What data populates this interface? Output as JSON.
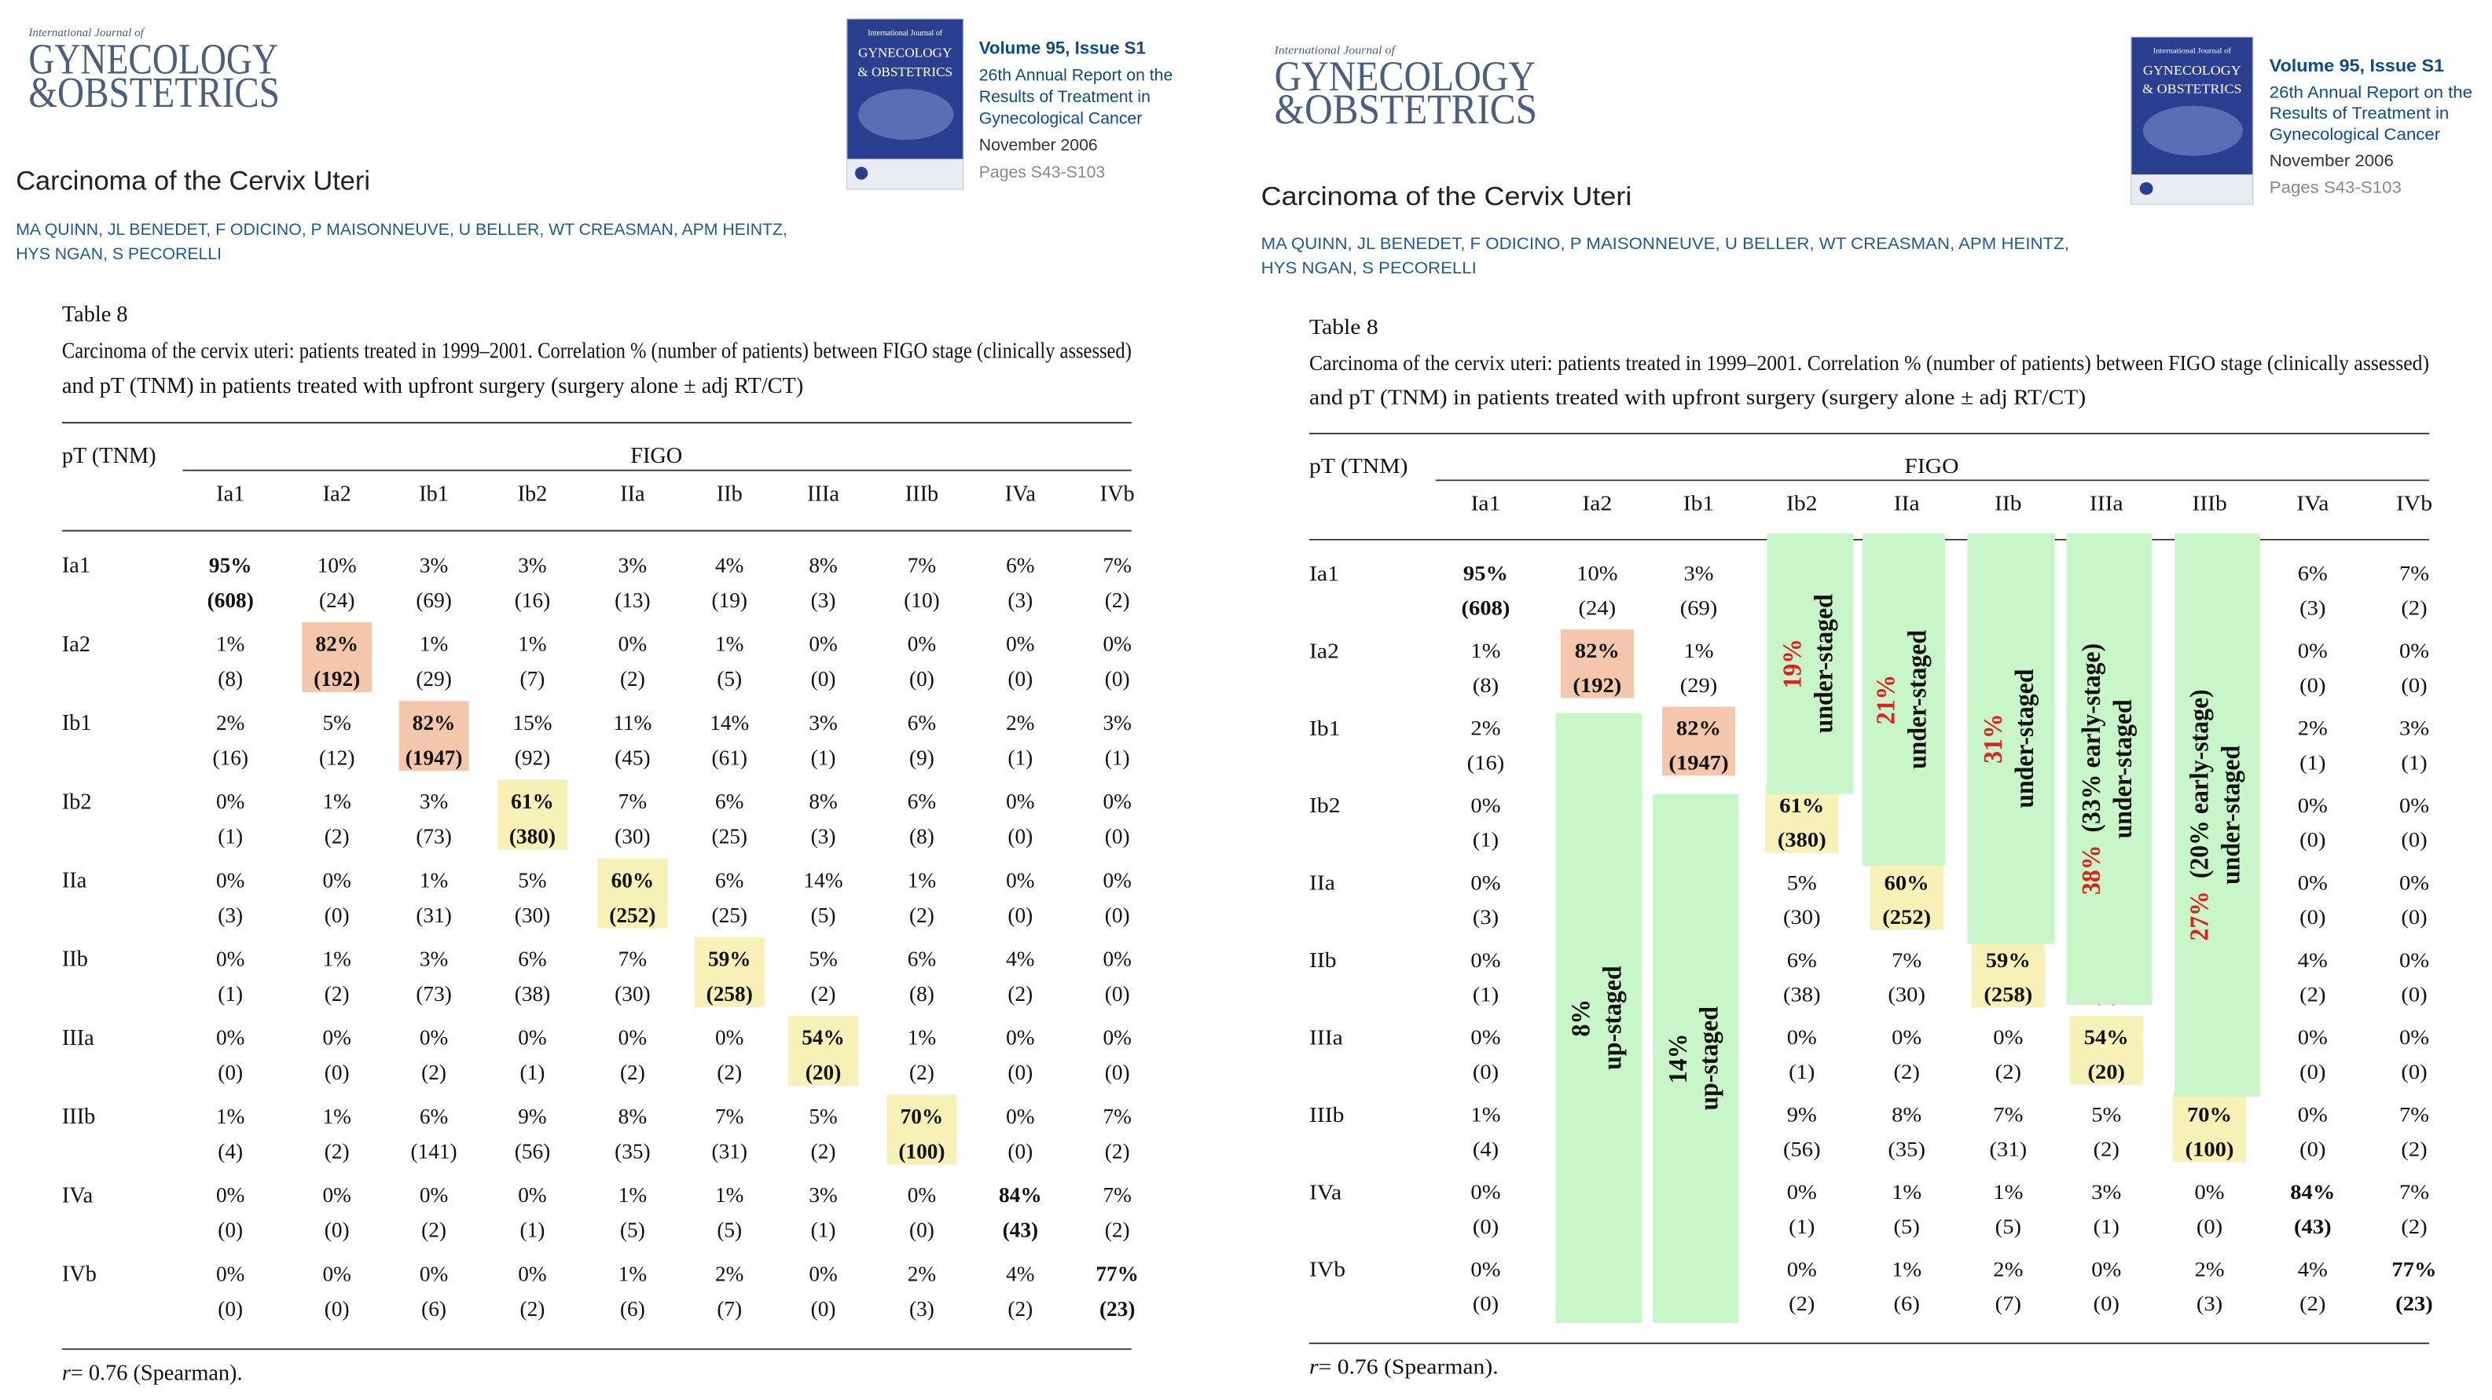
{
  "journal": {
    "kicker": "International Journal of",
    "name_line1": "GYNECOLOGY",
    "name_line2": "&OBSTETRICS"
  },
  "cover": {
    "lines": [
      "International Journal of",
      "GYNECOLOGY",
      "& OBSTETRICS"
    ]
  },
  "issue": {
    "volume": "Volume 95, Issue S1",
    "report": [
      "26th Annual Report on the",
      "Results of Treatment in",
      "Gynecological Cancer"
    ],
    "date": "November 2006",
    "pages": "Pages S43-S103"
  },
  "article": {
    "title": "Carcinoma of the Cervix Uteri",
    "authors": [
      "MA QUINN, JL BENEDET, F ODICINO, P MAISONNEUVE, U BELLER, WT CREASMAN, APM HEINTZ,",
      "HYS NGAN, S PECORELLI"
    ]
  },
  "table": {
    "label": "Table 8",
    "caption": [
      "Carcinoma of the cervix uteri: patients treated in 1999–2001. Correlation % (number of patients) between FIGO stage (clinically assessed)",
      "and pT (TNM) in patients treated with upfront surgery (surgery alone ± adj RT/CT)"
    ],
    "row_header": "pT (TNM)",
    "column_group": "FIGO",
    "columns": [
      "Ia1",
      "Ia2",
      "Ib1",
      "Ib2",
      "IIa",
      "IIb",
      "IIIa",
      "IIIb",
      "IVa",
      "IVb"
    ],
    "rows": [
      {
        "label": "Ia1",
        "cells": [
          {
            "pct": "95%",
            "n": "(608)",
            "bold": true
          },
          {
            "pct": "10%",
            "n": "(24)"
          },
          {
            "pct": "3%",
            "n": "(69)"
          },
          {
            "pct": "3%",
            "n": "(16)"
          },
          {
            "pct": "3%",
            "n": "(13)"
          },
          {
            "pct": "4%",
            "n": "(19)"
          },
          {
            "pct": "8%",
            "n": "(3)"
          },
          {
            "pct": "7%",
            "n": "(10)"
          },
          {
            "pct": "6%",
            "n": "(3)"
          },
          {
            "pct": "7%",
            "n": "(2)"
          }
        ]
      },
      {
        "label": "Ia2",
        "cells": [
          {
            "pct": "1%",
            "n": "(8)"
          },
          {
            "pct": "82%",
            "n": "(192)",
            "bold": true,
            "highlight": "salmon"
          },
          {
            "pct": "1%",
            "n": "(29)"
          },
          {
            "pct": "1%",
            "n": "(7)"
          },
          {
            "pct": "0%",
            "n": "(2)"
          },
          {
            "pct": "1%",
            "n": "(5)"
          },
          {
            "pct": "0%",
            "n": "(0)"
          },
          {
            "pct": "0%",
            "n": "(0)"
          },
          {
            "pct": "0%",
            "n": "(0)"
          },
          {
            "pct": "0%",
            "n": "(0)"
          }
        ]
      },
      {
        "label": "Ib1",
        "cells": [
          {
            "pct": "2%",
            "n": "(16)"
          },
          {
            "pct": "5%",
            "n": "(12)"
          },
          {
            "pct": "82%",
            "n": "(1947)",
            "bold": true,
            "highlight": "salmon"
          },
          {
            "pct": "15%",
            "n": "(92)"
          },
          {
            "pct": "11%",
            "n": "(45)"
          },
          {
            "pct": "14%",
            "n": "(61)"
          },
          {
            "pct": "3%",
            "n": "(1)"
          },
          {
            "pct": "6%",
            "n": "(9)"
          },
          {
            "pct": "2%",
            "n": "(1)"
          },
          {
            "pct": "3%",
            "n": "(1)"
          }
        ]
      },
      {
        "label": "Ib2",
        "cells": [
          {
            "pct": "0%",
            "n": "(1)"
          },
          {
            "pct": "1%",
            "n": "(2)"
          },
          {
            "pct": "3%",
            "n": "(73)"
          },
          {
            "pct": "61%",
            "n": "(380)",
            "bold": true,
            "highlight": "yellow"
          },
          {
            "pct": "7%",
            "n": "(30)"
          },
          {
            "pct": "6%",
            "n": "(25)"
          },
          {
            "pct": "8%",
            "n": "(3)"
          },
          {
            "pct": "6%",
            "n": "(8)"
          },
          {
            "pct": "0%",
            "n": "(0)"
          },
          {
            "pct": "0%",
            "n": "(0)"
          }
        ]
      },
      {
        "label": "IIa",
        "cells": [
          {
            "pct": "0%",
            "n": "(3)"
          },
          {
            "pct": "0%",
            "n": "(0)"
          },
          {
            "pct": "1%",
            "n": "(31)"
          },
          {
            "pct": "5%",
            "n": "(30)"
          },
          {
            "pct": "60%",
            "n": "(252)",
            "bold": true,
            "highlight": "yellow"
          },
          {
            "pct": "6%",
            "n": "(25)"
          },
          {
            "pct": "14%",
            "n": "(5)"
          },
          {
            "pct": "1%",
            "n": "(2)"
          },
          {
            "pct": "0%",
            "n": "(0)"
          },
          {
            "pct": "0%",
            "n": "(0)"
          }
        ]
      },
      {
        "label": "IIb",
        "cells": [
          {
            "pct": "0%",
            "n": "(1)"
          },
          {
            "pct": "1%",
            "n": "(2)"
          },
          {
            "pct": "3%",
            "n": "(73)"
          },
          {
            "pct": "6%",
            "n": "(38)"
          },
          {
            "pct": "7%",
            "n": "(30)"
          },
          {
            "pct": "59%",
            "n": "(258)",
            "bold": true,
            "highlight": "yellow"
          },
          {
            "pct": "5%",
            "n": "(2)"
          },
          {
            "pct": "6%",
            "n": "(8)"
          },
          {
            "pct": "4%",
            "n": "(2)"
          },
          {
            "pct": "0%",
            "n": "(0)"
          }
        ]
      },
      {
        "label": "IIIa",
        "cells": [
          {
            "pct": "0%",
            "n": "(0)"
          },
          {
            "pct": "0%",
            "n": "(0)"
          },
          {
            "pct": "0%",
            "n": "(2)"
          },
          {
            "pct": "0%",
            "n": "(1)"
          },
          {
            "pct": "0%",
            "n": "(2)"
          },
          {
            "pct": "0%",
            "n": "(2)"
          },
          {
            "pct": "54%",
            "n": "(20)",
            "bold": true,
            "highlight": "yellow"
          },
          {
            "pct": "1%",
            "n": "(2)"
          },
          {
            "pct": "0%",
            "n": "(0)"
          },
          {
            "pct": "0%",
            "n": "(0)"
          }
        ]
      },
      {
        "label": "IIIb",
        "cells": [
          {
            "pct": "1%",
            "n": "(4)"
          },
          {
            "pct": "1%",
            "n": "(2)"
          },
          {
            "pct": "6%",
            "n": "(141)"
          },
          {
            "pct": "9%",
            "n": "(56)"
          },
          {
            "pct": "8%",
            "n": "(35)"
          },
          {
            "pct": "7%",
            "n": "(31)"
          },
          {
            "pct": "5%",
            "n": "(2)"
          },
          {
            "pct": "70%",
            "n": "(100)",
            "bold": true,
            "highlight": "yellow"
          },
          {
            "pct": "0%",
            "n": "(0)"
          },
          {
            "pct": "7%",
            "n": "(2)"
          }
        ]
      },
      {
        "label": "IVa",
        "cells": [
          {
            "pct": "0%",
            "n": "(0)"
          },
          {
            "pct": "0%",
            "n": "(0)"
          },
          {
            "pct": "0%",
            "n": "(2)"
          },
          {
            "pct": "0%",
            "n": "(1)"
          },
          {
            "pct": "1%",
            "n": "(5)"
          },
          {
            "pct": "1%",
            "n": "(5)"
          },
          {
            "pct": "3%",
            "n": "(1)"
          },
          {
            "pct": "0%",
            "n": "(0)"
          },
          {
            "pct": "84%",
            "n": "(43)",
            "bold": true
          },
          {
            "pct": "7%",
            "n": "(2)"
          }
        ]
      },
      {
        "label": "IVb",
        "cells": [
          {
            "pct": "0%",
            "n": "(0)"
          },
          {
            "pct": "0%",
            "n": "(0)"
          },
          {
            "pct": "0%",
            "n": "(6)"
          },
          {
            "pct": "0%",
            "n": "(2)"
          },
          {
            "pct": "1%",
            "n": "(6)"
          },
          {
            "pct": "2%",
            "n": "(7)"
          },
          {
            "pct": "0%",
            "n": "(0)"
          },
          {
            "pct": "2%",
            "n": "(3)"
          },
          {
            "pct": "4%",
            "n": "(2)"
          },
          {
            "pct": "77%",
            "n": "(23)",
            "bold": true
          }
        ]
      }
    ],
    "footnote_var": "r",
    "footnote": "= 0.76 (Spearman)."
  },
  "highlight_colors": {
    "salmon": "#f4c7ad",
    "yellow": "#f7f1b8"
  },
  "annotations": {
    "color": "#c9f6c9",
    "items": [
      {
        "value": "8%",
        "value_color": "#111111",
        "text": "up-staged"
      },
      {
        "value": "14%",
        "value_color": "#111111",
        "text": "up-staged"
      },
      {
        "value": "19%",
        "value_color": "#e0201b",
        "text": "under-staged"
      },
      {
        "value": "21%",
        "value_color": "#e0201b",
        "text": "under-staged"
      },
      {
        "value": "31%",
        "value_color": "#e0201b",
        "text": "under-staged"
      },
      {
        "value": "38%",
        "value_color": "#e0201b",
        "note": "(33% early-stage)",
        "text": "under-staged"
      },
      {
        "value": "27%",
        "value_color": "#e0201b",
        "note": "(20% early-stage)",
        "text": "under-staged"
      }
    ]
  }
}
